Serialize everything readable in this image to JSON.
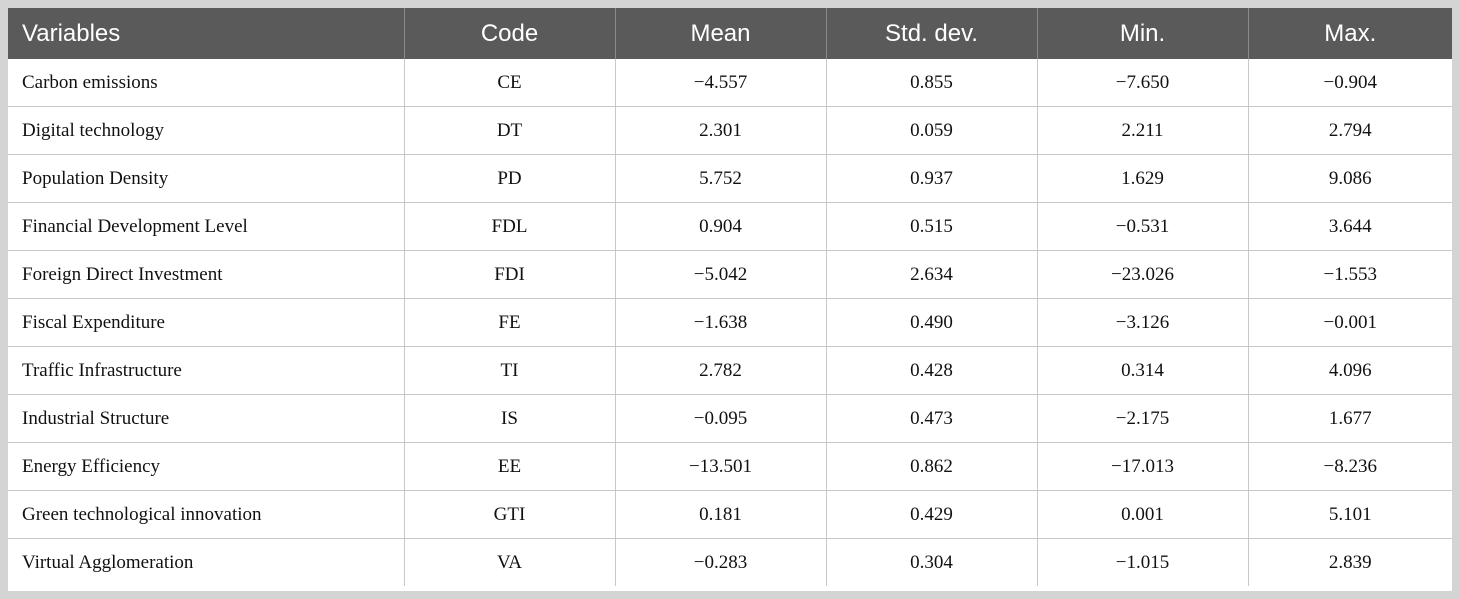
{
  "table": {
    "headers": [
      "Variables",
      "Code",
      "Mean",
      "Std. dev.",
      "Min.",
      "Max."
    ],
    "rows": [
      [
        "Carbon emissions",
        "CE",
        "−4.557",
        "0.855",
        "−7.650",
        "−0.904"
      ],
      [
        "Digital technology",
        "DT",
        "2.301",
        "0.059",
        "2.211",
        "2.794"
      ],
      [
        "Population Density",
        "PD",
        "5.752",
        "0.937",
        "1.629",
        "9.086"
      ],
      [
        "Financial Development Level",
        "FDL",
        "0.904",
        "0.515",
        "−0.531",
        "3.644"
      ],
      [
        "Foreign Direct Investment",
        "FDI",
        "−5.042",
        "2.634",
        "−23.026",
        "−1.553"
      ],
      [
        "Fiscal Expenditure",
        "FE",
        "−1.638",
        "0.490",
        "−3.126",
        "−0.001"
      ],
      [
        "Traffic Infrastructure",
        "TI",
        "2.782",
        "0.428",
        "0.314",
        "4.096"
      ],
      [
        "Industrial Structure",
        "IS",
        "−0.095",
        "0.473",
        "−2.175",
        "1.677"
      ],
      [
        "Energy Efficiency",
        "EE",
        "−13.501",
        "0.862",
        "−17.013",
        "−8.236"
      ],
      [
        "Green technological innovation",
        "GTI",
        "0.181",
        "0.429",
        "0.001",
        "5.101"
      ],
      [
        "Virtual Agglomeration",
        "VA",
        "−0.283",
        "0.304",
        "−1.015",
        "2.839"
      ]
    ]
  },
  "colors": {
    "header_background": "#5a5a5a",
    "header_text": "#ffffff",
    "page_background": "#d4d4d4",
    "grid_line": "#c8c8c8"
  }
}
